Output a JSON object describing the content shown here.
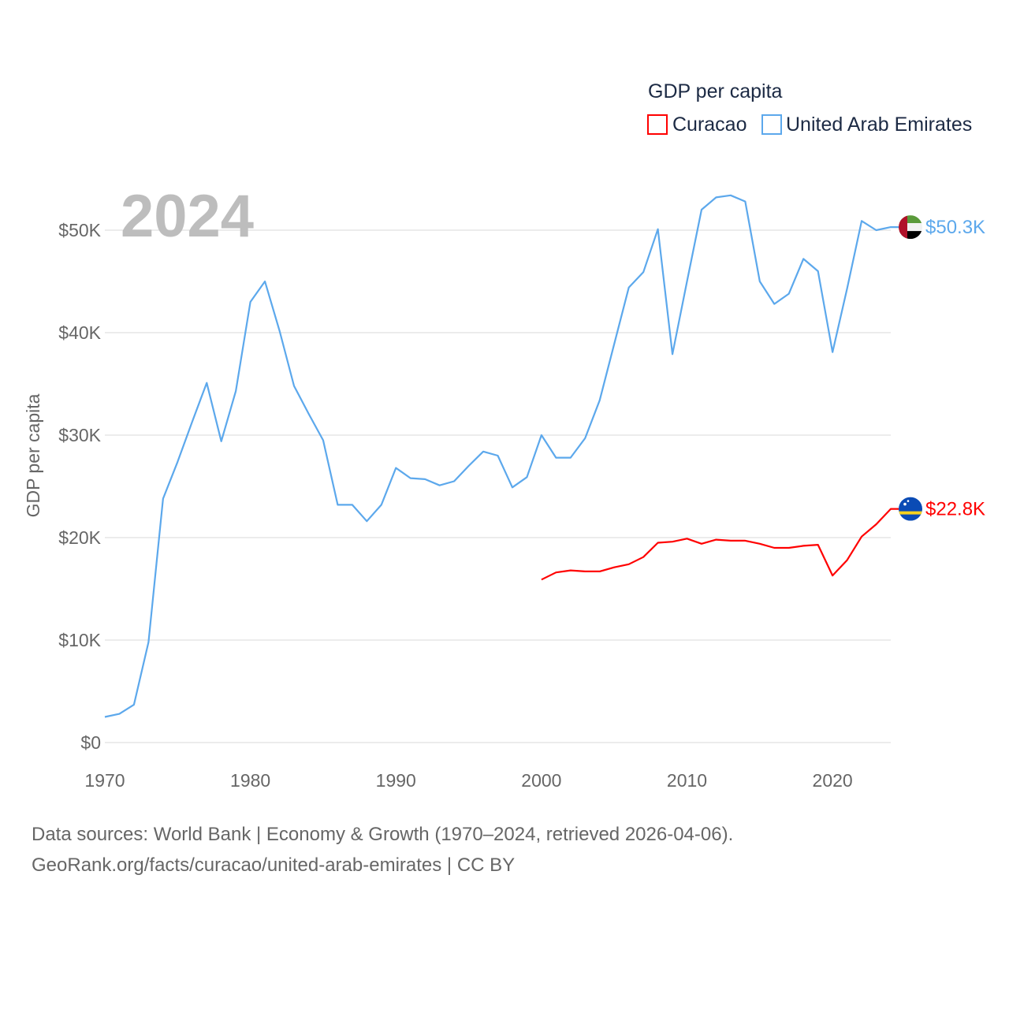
{
  "chart_data": {
    "type": "line",
    "title": "GDP per capita",
    "year_label": "2024",
    "xlabel": "",
    "ylabel": "GDP per capita",
    "xlim": [
      1970,
      2024
    ],
    "ylim": [
      0,
      55000
    ],
    "x_ticks": [
      1970,
      1980,
      1990,
      2000,
      2010,
      2020
    ],
    "x_tick_labels": [
      "1970",
      "1980",
      "1990",
      "2000",
      "2010",
      "2020"
    ],
    "y_ticks": [
      0,
      10000,
      20000,
      30000,
      40000,
      50000
    ],
    "y_tick_labels": [
      "$0",
      "$10K",
      "$20K",
      "$30K",
      "$40K",
      "$50K"
    ],
    "grid": true,
    "legend_position": "top-right",
    "series": [
      {
        "name": "Curacao",
        "color": "#ff0000",
        "end_label": "$22.8K",
        "flag": "curacao-flag",
        "x_start": 2000,
        "values": [
          15900,
          16600,
          16800,
          16700,
          16700,
          17100,
          17400,
          18100,
          19500,
          19600,
          19900,
          19400,
          19800,
          19700,
          19700,
          19400,
          19000,
          19000,
          19200,
          19300,
          16300,
          17800,
          20100,
          21300,
          22800
        ]
      },
      {
        "name": "United Arab Emirates",
        "color": "#5ca8ec",
        "end_label": "$50.3K",
        "flag": "uae-flag",
        "x_start": 1970,
        "values": [
          2500,
          2800,
          3700,
          9800,
          23800,
          27400,
          31300,
          35100,
          29400,
          34300,
          43000,
          45000,
          40200,
          34800,
          32100,
          29500,
          23200,
          23200,
          21600,
          23200,
          26800,
          25800,
          25700,
          25100,
          25500,
          27000,
          28400,
          28000,
          24900,
          25900,
          30000,
          27800,
          27800,
          29700,
          33400,
          38900,
          44400,
          45900,
          50100,
          37900,
          45000,
          52000,
          53200,
          53400,
          52800,
          45000,
          42800,
          43800,
          47200,
          46000,
          38100,
          44300,
          50900,
          50000,
          50300
        ]
      }
    ]
  },
  "footer": {
    "line1": "Data sources: World Bank | Economy & Growth (1970–2024, retrieved 2026-04-06).",
    "line2": "GeoRank.org/facts/curacao/united-arab-emirates | CC BY"
  }
}
